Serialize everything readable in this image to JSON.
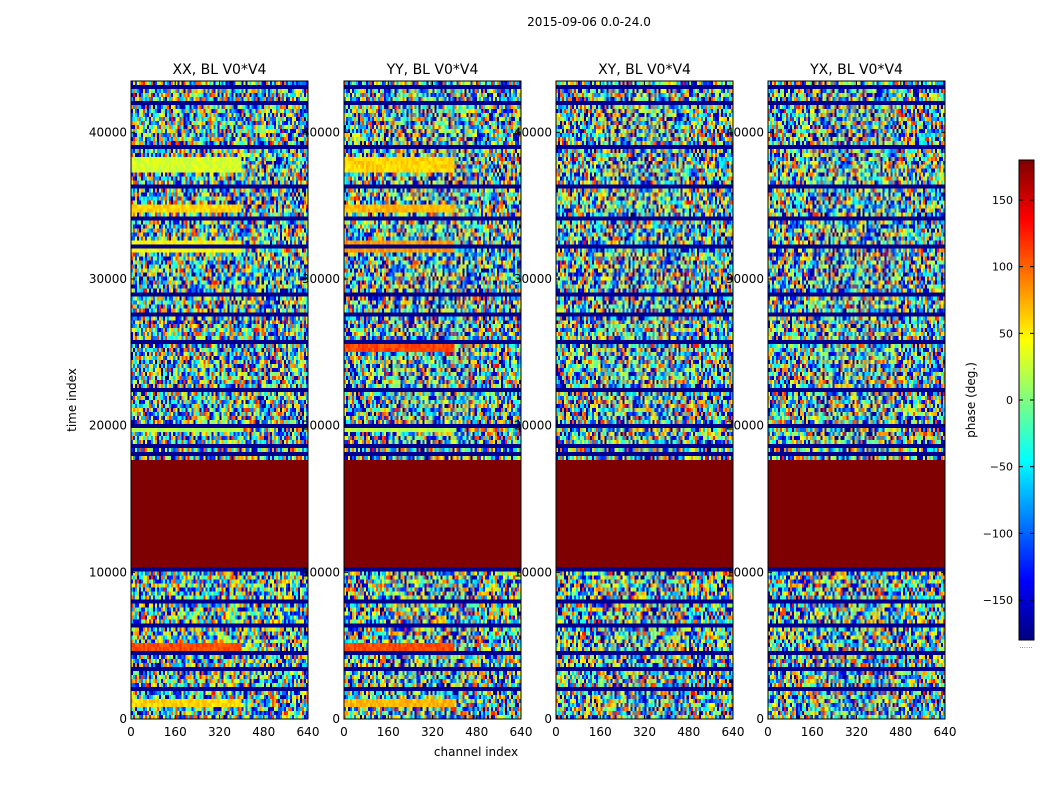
{
  "chart_data": {
    "type": "heatmap",
    "suptitle": "2015-09-06 0.0-24.0",
    "xlabel": "channel index",
    "ylabel": "time index",
    "xlim": [
      0,
      640
    ],
    "ylim": [
      0,
      43500
    ],
    "xticks": [
      0,
      160,
      320,
      480,
      640
    ],
    "yticks": [
      0,
      10000,
      20000,
      30000,
      40000
    ],
    "panels": [
      {
        "title": "XX, BL V0*V4",
        "coherent_band_channels": [
          0,
          400
        ],
        "coherent_rows": [
          [
            800,
            1300,
            60
          ],
          [
            4700,
            5200,
            110
          ],
          [
            31700,
            32600,
            45
          ],
          [
            34600,
            35200,
            60
          ],
          [
            37300,
            38200,
            30
          ],
          [
            19500,
            19800,
            20
          ]
        ]
      },
      {
        "title": "YY, BL V0*V4",
        "coherent_band_channels": [
          0,
          400
        ],
        "coherent_rows": [
          [
            800,
            1300,
            70
          ],
          [
            4700,
            5200,
            110
          ],
          [
            31700,
            32600,
            80
          ],
          [
            34600,
            35200,
            70
          ],
          [
            37300,
            38200,
            60
          ],
          [
            25100,
            25600,
            110
          ],
          [
            19500,
            19800,
            20
          ]
        ]
      },
      {
        "title": "XY, BL V0*V4",
        "coherent_band_channels": [
          0,
          0
        ],
        "coherent_rows": []
      },
      {
        "title": "YX, BL V0*V4",
        "coherent_band_channels": [
          0,
          0
        ],
        "coherent_rows": []
      }
    ],
    "flagged_block": [
      10300,
      17800
    ],
    "flag_value": 180,
    "dark_rows": [
      2000,
      3300,
      4500,
      6500,
      8100,
      10100,
      18100,
      18700,
      20100,
      22500,
      25700,
      27600,
      29000,
      32300,
      34100,
      36300,
      38900,
      42000,
      43000
    ],
    "colorbar": {
      "label": "phase (deg.)",
      "range": [
        -180,
        180
      ],
      "ticks": [
        150,
        100,
        50,
        0,
        -50,
        -100,
        -150
      ],
      "tick_labels": [
        "150",
        "100",
        "50",
        "0",
        "−50",
        "−100",
        "−150"
      ],
      "footnote": "......",
      "colormap": "jet",
      "colors": [
        "#00007f",
        "#0000ff",
        "#007fff",
        "#00ffff",
        "#7fff7f",
        "#ffff00",
        "#ff7f00",
        "#ff0000",
        "#7f0000"
      ]
    }
  }
}
